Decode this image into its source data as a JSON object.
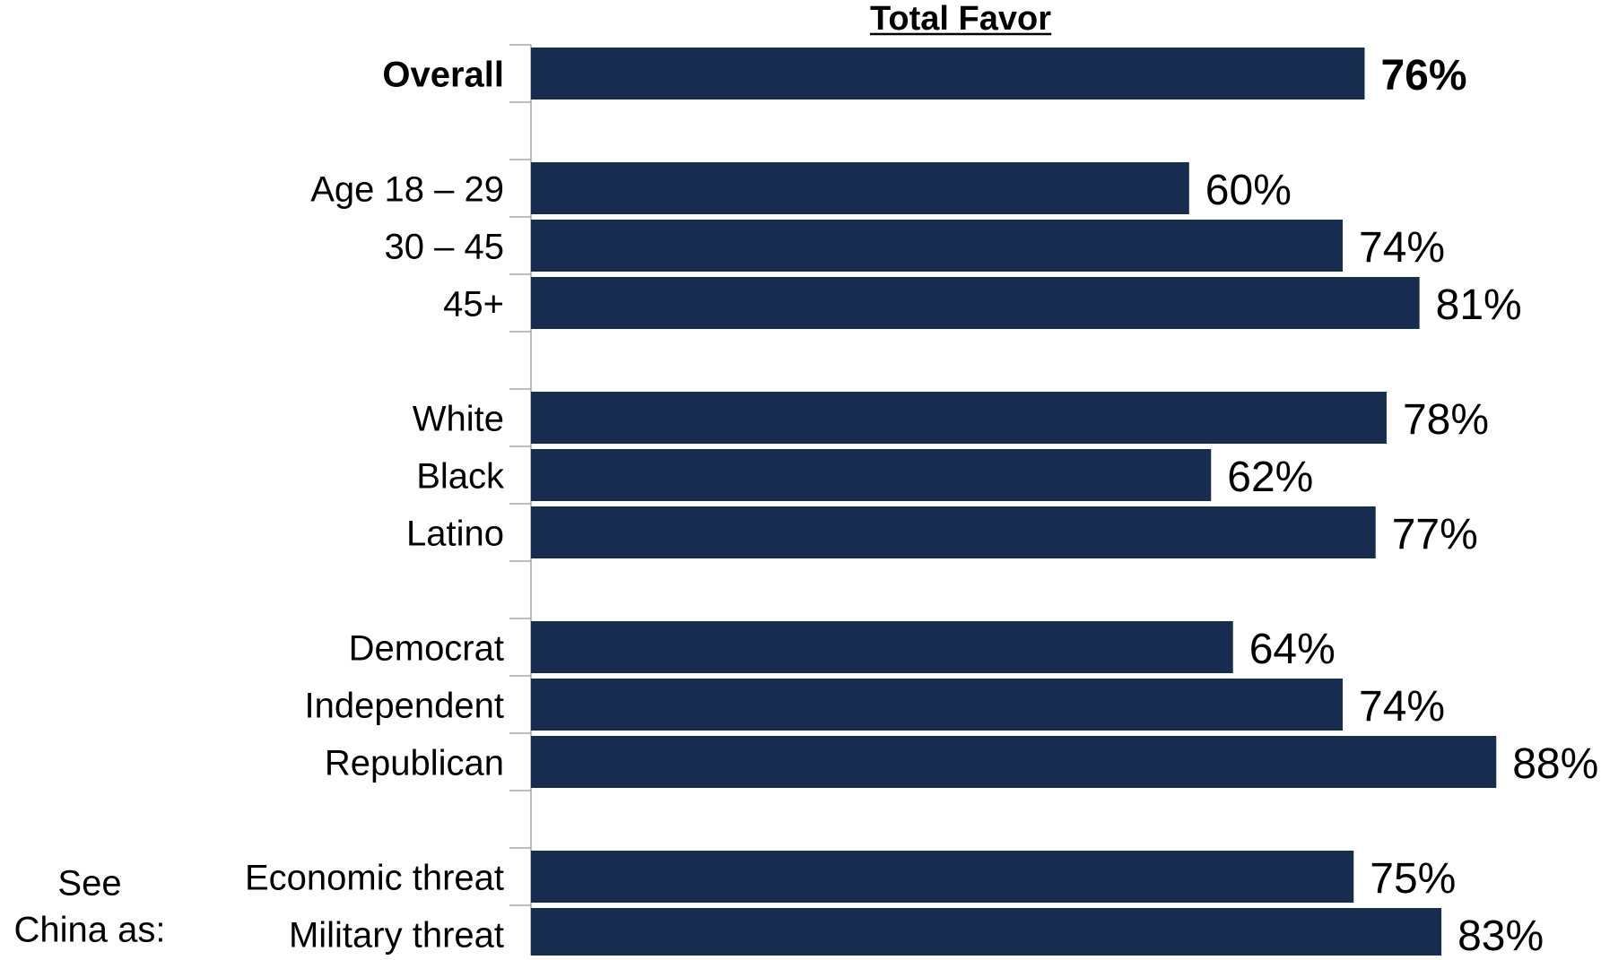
{
  "chart_data": {
    "type": "bar",
    "orientation": "horizontal",
    "title": "Total Favor",
    "bar_color": "#162d50",
    "xlim": [
      0,
      100
    ],
    "categories": [
      "Overall",
      "Age 18 – 29",
      "30 – 45",
      "45+",
      "White",
      "Black",
      "Latino",
      "Democrat",
      "Independent",
      "Republican",
      "Economic threat",
      "Military threat"
    ],
    "values": [
      76,
      60,
      74,
      81,
      78,
      62,
      77,
      64,
      74,
      88,
      75,
      83
    ],
    "data_labels": [
      "76%",
      "60%",
      "74%",
      "81%",
      "78%",
      "62%",
      "77%",
      "64%",
      "74%",
      "88%",
      "75%",
      "83%"
    ],
    "bold_categories": [
      "Overall"
    ],
    "groups": [
      {
        "items": [
          "Overall"
        ]
      },
      {
        "items": [
          "Age 18 – 29",
          "30 – 45",
          "45+"
        ]
      },
      {
        "items": [
          "White",
          "Black",
          "Latino"
        ]
      },
      {
        "items": [
          "Democrat",
          "Independent",
          "Republican"
        ]
      },
      {
        "label": [
          "See",
          "China as:"
        ],
        "items": [
          "Economic threat",
          "Military threat"
        ]
      }
    ]
  }
}
